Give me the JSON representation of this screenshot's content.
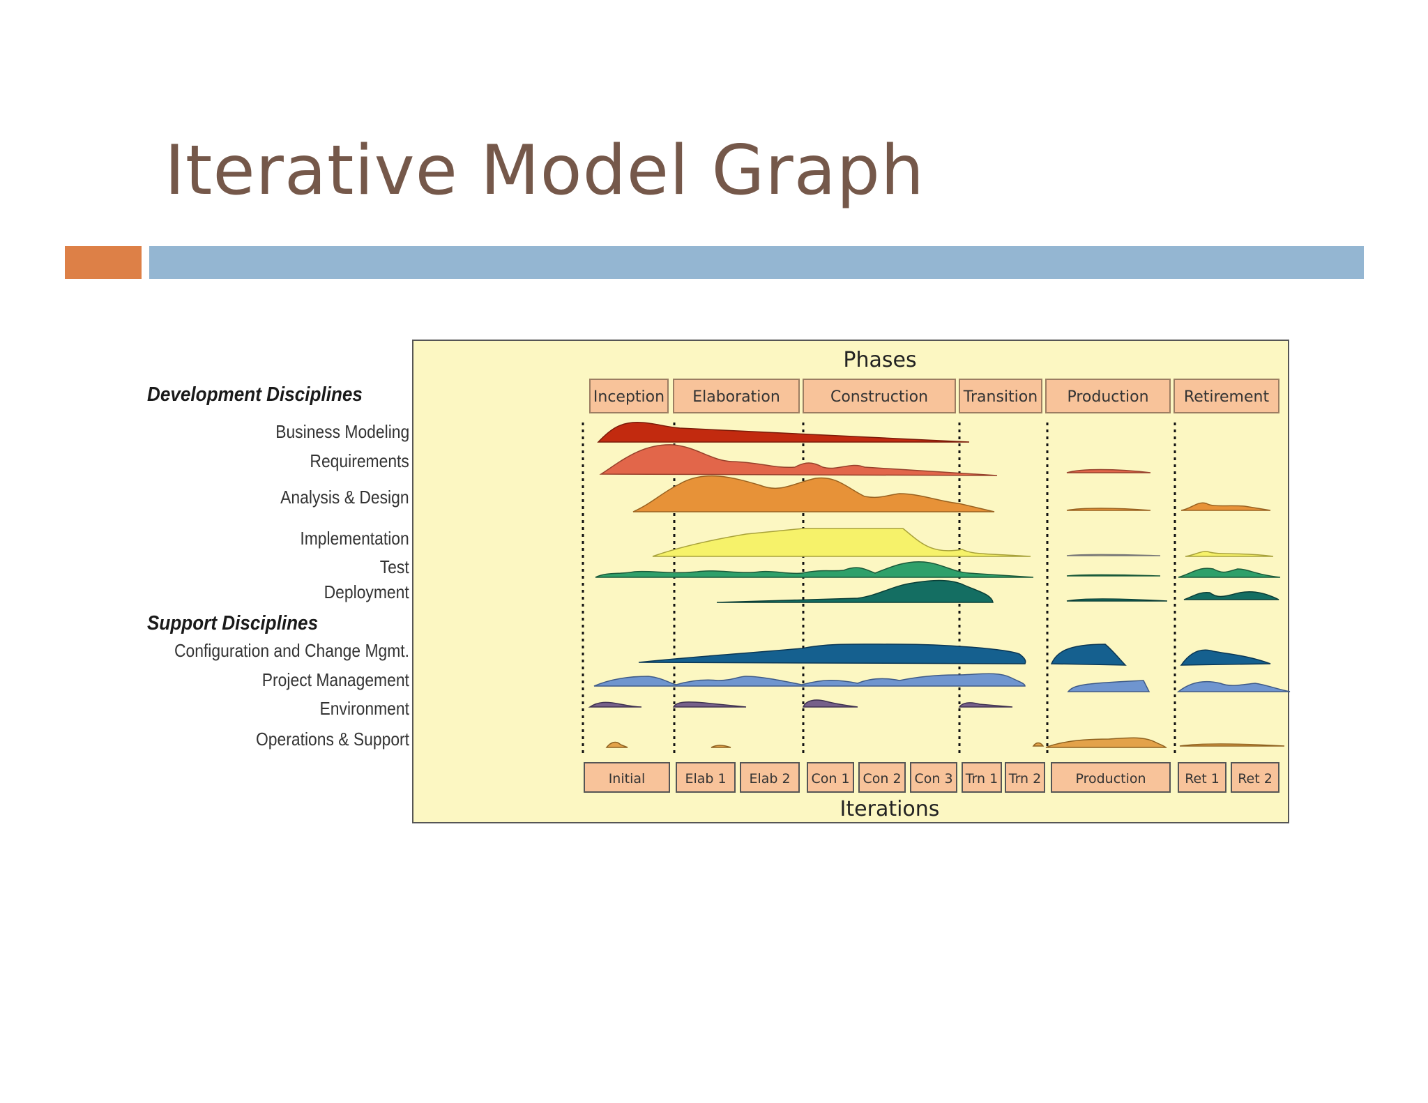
{
  "slide": {
    "title": "Iterative Model Graph",
    "accent_colors": {
      "orange": "#dd8047",
      "blue": "#94b6d2",
      "title": "#75584a",
      "panel": "#fcf7c2"
    }
  },
  "disciplines": {
    "development_heading": "Development Disciplines",
    "support_heading": "Support Disciplines",
    "development": [
      {
        "label": "Business Modeling",
        "color": "#c22a0f"
      },
      {
        "label": "Requirements",
        "color": "#e2664a"
      },
      {
        "label": "Analysis & Design",
        "color": "#e79238"
      },
      {
        "label": "Implementation",
        "color": "#f6f26a"
      },
      {
        "label": "Test",
        "color": "#2fa06a"
      },
      {
        "label": "Deployment",
        "color": "#146e62"
      }
    ],
    "support": [
      {
        "label": "Configuration and Change Mgmt.",
        "color": "#15608f"
      },
      {
        "label": "Project Management",
        "color": "#6f95cf"
      },
      {
        "label": "Environment",
        "color": "#76608a"
      },
      {
        "label": "Operations & Support",
        "color": "#e3a24a"
      }
    ]
  },
  "diagram": {
    "top_heading": "Phases",
    "bottom_heading": "Iterations",
    "phases": [
      "Inception",
      "Elaboration",
      "Construction",
      "Transition",
      "Production",
      "Retirement"
    ],
    "iterations": [
      "Initial",
      "Elab 1",
      "Elab 2",
      "Con 1",
      "Con 2",
      "Con 3",
      "Trn 1",
      "Trn 2",
      "Production",
      "Ret 1",
      "Ret 2"
    ]
  }
}
